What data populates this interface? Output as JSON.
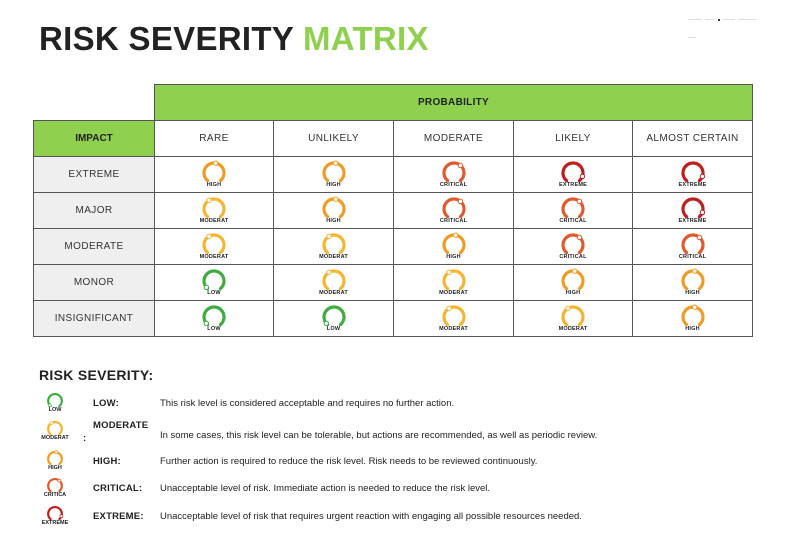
{
  "title": {
    "part1": "RISK SEVERITY",
    "part2": "MATRIX"
  },
  "colors": {
    "accent": "#8fd14f",
    "low": "#3dae3d",
    "moderate": "#f5b52e",
    "high": "#f29b22",
    "critical": "#e05a2b",
    "extreme": "#c01d1d"
  },
  "matrix": {
    "probability_header": "PROBABILITY",
    "impact_header": "IMPACT",
    "columns": [
      "RARE",
      "UNLIKELY",
      "MODERATE",
      "LIKELY",
      "ALMOST CERTAIN"
    ],
    "rows": [
      {
        "label": "EXTREME",
        "cells": [
          {
            "label": "HIGH",
            "level": "high"
          },
          {
            "label": "HIGH",
            "level": "high"
          },
          {
            "label": "CRITICAL",
            "level": "critical"
          },
          {
            "label": "EXTREME",
            "level": "extreme"
          },
          {
            "label": "EXTREME",
            "level": "extreme"
          }
        ]
      },
      {
        "label": "MAJOR",
        "cells": [
          {
            "label": "MODERAT",
            "level": "moderate"
          },
          {
            "label": "HIGH",
            "level": "high"
          },
          {
            "label": "CRITICAL",
            "level": "critical"
          },
          {
            "label": "CRITICAL",
            "level": "critical"
          },
          {
            "label": "EXTREME",
            "level": "extreme"
          }
        ]
      },
      {
        "label": "MODERATE",
        "cells": [
          {
            "label": "MODERAT",
            "level": "moderate"
          },
          {
            "label": "MODERAT",
            "level": "moderate"
          },
          {
            "label": "HIGH",
            "level": "high"
          },
          {
            "label": "CRITICAL",
            "level": "critical"
          },
          {
            "label": "CRITICAL",
            "level": "critical"
          }
        ]
      },
      {
        "label": "MONOR",
        "cells": [
          {
            "label": "LOW",
            "level": "low"
          },
          {
            "label": "MODERAT",
            "level": "moderate"
          },
          {
            "label": "MODERAT",
            "level": "moderate"
          },
          {
            "label": "HIGH",
            "level": "high"
          },
          {
            "label": "HIGH",
            "level": "high"
          }
        ]
      },
      {
        "label": "INSIGNIFICANT",
        "cells": [
          {
            "label": "LOW",
            "level": "low"
          },
          {
            "label": "LOW",
            "level": "low"
          },
          {
            "label": "MODERAT",
            "level": "moderate"
          },
          {
            "label": "MODERAT",
            "level": "moderate"
          },
          {
            "label": "HIGH",
            "level": "high"
          }
        ]
      }
    ]
  },
  "severity": {
    "title": "RISK SEVERITY:",
    "items": [
      {
        "icon_label": "LOW",
        "level": "low",
        "name": "LOW:",
        "desc": "This risk level is considered acceptable and requires no further action."
      },
      {
        "icon_label": "MODERAT",
        "level": "moderate",
        "name": "MODERATE",
        "colon": ":",
        "desc": "In some cases, this risk level can be tolerable, but actions are recommended, as well as periodic review."
      },
      {
        "icon_label": "HIGH",
        "level": "high",
        "name": "HIGH:",
        "desc": "Further action is required to reduce the risk level. Risk needs to be reviewed continuously."
      },
      {
        "icon_label": "CRITICA",
        "level": "critical",
        "name": "CRITICAL:",
        "desc": "Unacceptable level of risk. Immediate action is needed to reduce the risk level."
      },
      {
        "icon_label": "EXTREME",
        "level": "extreme",
        "name": "EXTREME:",
        "desc": "Unacceptable level of risk that requires urgent reaction with engaging all possible resources needed."
      }
    ]
  }
}
